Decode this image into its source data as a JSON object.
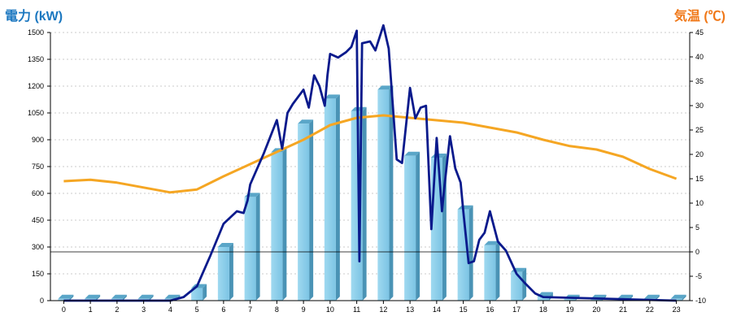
{
  "chart_data": {
    "type": "bar+line",
    "left_axis_title": "電力 (kW)",
    "right_axis_title": "気温 (℃)",
    "left_ylim": [
      0,
      1500
    ],
    "left_ticks": [
      0,
      150,
      300,
      450,
      600,
      750,
      900,
      1050,
      1200,
      1350,
      1500
    ],
    "right_ylim": [
      -10,
      45
    ],
    "right_ticks": [
      -10,
      -5,
      0,
      5,
      10,
      15,
      20,
      25,
      30,
      35,
      40,
      45
    ],
    "categories": [
      "0",
      "1",
      "2",
      "3",
      "4",
      "5",
      "6",
      "7",
      "8",
      "9",
      "10",
      "11",
      "12",
      "13",
      "14",
      "15",
      "16",
      "17",
      "18",
      "19",
      "20",
      "21",
      "22",
      "23"
    ],
    "grid": true,
    "bar_series": {
      "values": [
        10,
        10,
        10,
        10,
        10,
        70,
        300,
        580,
        830,
        990,
        1130,
        1060,
        1180,
        810,
        800,
        510,
        310,
        160,
        25,
        10,
        10,
        10,
        10,
        10
      ],
      "color": "#87ceeb"
    },
    "power_line": {
      "color": "#0a1a8c",
      "x": [
        0,
        4,
        4.5,
        5,
        5.5,
        6,
        6.5,
        6.75,
        6.9,
        7,
        7.5,
        8,
        8.2,
        8.4,
        8.6,
        9,
        9.2,
        9.4,
        9.6,
        9.8,
        9.9,
        10,
        10.3,
        10.6,
        10.8,
        11,
        11.1,
        11.2,
        11.5,
        11.7,
        12,
        12.2,
        12.5,
        12.7,
        13,
        13.2,
        13.4,
        13.6,
        13.8,
        14,
        14.2,
        14.3,
        14.5,
        14.7,
        14.9,
        15,
        15.2,
        15.4,
        15.6,
        15.8,
        16,
        16.3,
        16.6,
        17,
        17.3,
        17.7,
        18,
        23
      ],
      "values": [
        0,
        0,
        20,
        80,
        250,
        430,
        500,
        490,
        560,
        650,
        820,
        1010,
        850,
        1050,
        1100,
        1180,
        1080,
        1260,
        1200,
        1090,
        1260,
        1380,
        1360,
        1390,
        1420,
        1510,
        220,
        1440,
        1450,
        1400,
        1540,
        1410,
        790,
        770,
        1190,
        1020,
        1080,
        1090,
        400,
        910,
        500,
        650,
        920,
        740,
        660,
        500,
        210,
        220,
        340,
        380,
        500,
        330,
        280,
        150,
        100,
        40,
        20,
        0
      ]
    },
    "temperature_line": {
      "color": "#f5a623",
      "x": [
        0,
        1,
        2,
        3,
        4,
        5,
        6,
        7,
        8,
        9,
        10,
        11,
        12,
        13,
        14,
        15,
        16,
        17,
        18,
        19,
        20,
        21,
        22,
        23
      ],
      "values": [
        14.5,
        14.8,
        14.2,
        13.2,
        12.2,
        12.8,
        15.5,
        18.0,
        20.5,
        23.0,
        26.0,
        27.5,
        28.0,
        27.5,
        27.0,
        26.5,
        25.5,
        24.5,
        23.0,
        21.7,
        21.0,
        19.5,
        17.0,
        15.0
      ]
    },
    "reference_line": {
      "right_axis_value": 0,
      "color": "#000000"
    }
  }
}
